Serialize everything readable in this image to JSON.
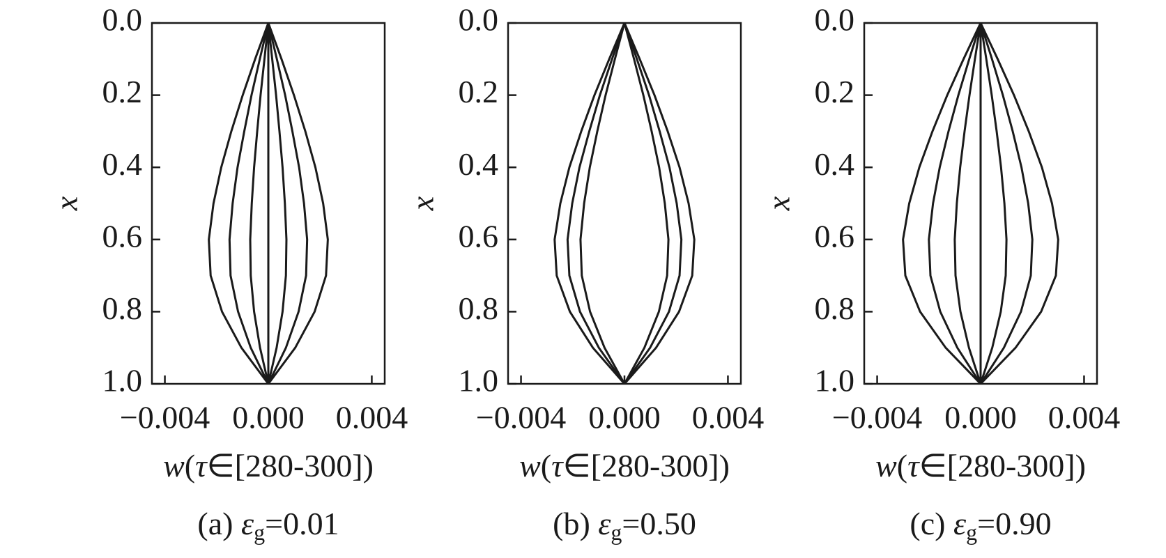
{
  "chart_data": [
    {
      "type": "line",
      "ylabel": "x",
      "xlabel": [
        "w",
        "(",
        "τ",
        "∈[280-300])"
      ],
      "caption": [
        "(a) ",
        "ε",
        "g",
        "=0.01"
      ],
      "xlim": [
        -0.0045,
        0.0045
      ],
      "ylim": [
        0,
        1
      ],
      "y_inverted": true,
      "color": "#1a1a1a",
      "xticks": [
        {
          "value": -0.004,
          "label": "−0.004"
        },
        {
          "value": 0,
          "label": "0.000"
        },
        {
          "value": 0.004,
          "label": "0.004"
        }
      ],
      "yticks": [
        {
          "value": 0,
          "label": "0.0"
        },
        {
          "value": 0.2,
          "label": "0.2"
        },
        {
          "value": 0.4,
          "label": "0.4"
        },
        {
          "value": 0.6,
          "label": "0.6"
        },
        {
          "value": 0.8,
          "label": "0.8"
        },
        {
          "value": 1,
          "label": "1.0"
        }
      ],
      "x": [
        0,
        0.1,
        0.2,
        0.3,
        0.4,
        0.5,
        0.6,
        0.7,
        0.8,
        0.9,
        1
      ],
      "series": [
        {
          "values": [
            0,
            0.00051,
            0.00099,
            0.00143,
            0.00182,
            0.00212,
            0.0023,
            0.00223,
            0.00179,
            0.00104,
            0
          ]
        },
        {
          "values": [
            0,
            0.00033,
            0.00065,
            0.00093,
            0.00119,
            0.00138,
            0.0015,
            0.00146,
            0.00117,
            0.00068,
            0
          ]
        },
        {
          "values": [
            0,
            0.00015,
            0.0003,
            0.00043,
            0.00055,
            0.00064,
            0.0007,
            0.00068,
            0.00055,
            0.00032,
            0
          ]
        },
        {
          "values": [
            0,
            0,
            0,
            0,
            0,
            0,
            0,
            0,
            0,
            0,
            0
          ]
        },
        {
          "values": [
            0,
            -0.00015,
            -0.0003,
            -0.00043,
            -0.00055,
            -0.00064,
            -0.0007,
            -0.00068,
            -0.00055,
            -0.00032,
            0
          ]
        },
        {
          "values": [
            0,
            -0.00033,
            -0.00065,
            -0.00093,
            -0.00119,
            -0.00138,
            -0.0015,
            -0.00146,
            -0.00117,
            -0.00068,
            0
          ]
        },
        {
          "values": [
            0,
            -0.00051,
            -0.00099,
            -0.00143,
            -0.00182,
            -0.00212,
            -0.0023,
            -0.00223,
            -0.00179,
            -0.00104,
            0
          ]
        }
      ]
    },
    {
      "type": "line",
      "ylabel": "x",
      "xlabel": [
        "w",
        "(",
        "τ",
        "∈[280-300])"
      ],
      "caption": [
        "(b) ",
        "ε",
        "g",
        "=0.50"
      ],
      "xlim": [
        -0.0045,
        0.0045
      ],
      "ylim": [
        0,
        1
      ],
      "y_inverted": true,
      "color": "#1a1a1a",
      "xticks": [
        {
          "value": -0.004,
          "label": "−0.004"
        },
        {
          "value": 0,
          "label": "0.000"
        },
        {
          "value": 0.004,
          "label": "0.004"
        }
      ],
      "yticks": [
        {
          "value": 0,
          "label": "0.0"
        },
        {
          "value": 0.2,
          "label": "0.2"
        },
        {
          "value": 0.4,
          "label": "0.4"
        },
        {
          "value": 0.6,
          "label": "0.6"
        },
        {
          "value": 0.8,
          "label": "0.8"
        },
        {
          "value": 1,
          "label": "1.0"
        }
      ],
      "x": [
        0,
        0.1,
        0.2,
        0.3,
        0.4,
        0.5,
        0.6,
        0.7,
        0.8,
        0.9,
        1
      ],
      "series": [
        {
          "values": [
            0,
            0.00059,
            0.00116,
            0.00167,
            0.00213,
            0.00248,
            0.0027,
            0.00262,
            0.00211,
            0.00122,
            0
          ]
        },
        {
          "values": [
            0,
            0.00048,
            0.00095,
            0.00136,
            0.00174,
            0.00202,
            0.0022,
            0.00213,
            0.00172,
            0.00099,
            0
          ]
        },
        {
          "values": [
            0,
            0.00037,
            0.00073,
            0.00105,
            0.00134,
            0.00156,
            0.0017,
            0.00165,
            0.00133,
            0.00077,
            0
          ]
        },
        {
          "values": [
            0,
            -0.00037,
            -0.00073,
            -0.00105,
            -0.00134,
            -0.00156,
            -0.0017,
            -0.00165,
            -0.00133,
            -0.00077,
            0
          ]
        },
        {
          "values": [
            0,
            -0.00048,
            -0.00095,
            -0.00136,
            -0.00174,
            -0.00202,
            -0.0022,
            -0.00213,
            -0.00172,
            -0.00099,
            0
          ]
        },
        {
          "values": [
            0,
            -0.00059,
            -0.00116,
            -0.00167,
            -0.00213,
            -0.00248,
            -0.0027,
            -0.00262,
            -0.00211,
            -0.00122,
            0
          ]
        }
      ]
    },
    {
      "type": "line",
      "ylabel": "x",
      "xlabel": [
        "w",
        "(",
        "τ",
        "∈[280-300])"
      ],
      "caption": [
        "(c) ",
        "ε",
        "g",
        "=0.90"
      ],
      "xlim": [
        -0.0045,
        0.0045
      ],
      "ylim": [
        0,
        1
      ],
      "y_inverted": true,
      "color": "#1a1a1a",
      "xticks": [
        {
          "value": -0.004,
          "label": "−0.004"
        },
        {
          "value": 0,
          "label": "0.000"
        },
        {
          "value": 0.004,
          "label": "0.004"
        }
      ],
      "yticks": [
        {
          "value": 0,
          "label": "0.0"
        },
        {
          "value": 0.2,
          "label": "0.2"
        },
        {
          "value": 0.4,
          "label": "0.4"
        },
        {
          "value": 0.6,
          "label": "0.6"
        },
        {
          "value": 0.8,
          "label": "0.8"
        },
        {
          "value": 1,
          "label": "1.0"
        }
      ],
      "x": [
        0,
        0.1,
        0.2,
        0.3,
        0.4,
        0.5,
        0.6,
        0.7,
        0.8,
        0.9,
        1
      ],
      "series": [
        {
          "values": [
            0,
            0.00066,
            0.00129,
            0.00186,
            0.00237,
            0.00276,
            0.003,
            0.00291,
            0.00234,
            0.00135,
            0
          ]
        },
        {
          "values": [
            0,
            0.00044,
            0.00086,
            0.00124,
            0.00158,
            0.00184,
            0.002,
            0.00194,
            0.00156,
            0.0009,
            0
          ]
        },
        {
          "values": [
            0,
            0.00022,
            0.00043,
            0.00062,
            0.00079,
            0.00092,
            0.001,
            0.00097,
            0.00078,
            0.00045,
            0
          ]
        },
        {
          "values": [
            0,
            0,
            0,
            0,
            0,
            0,
            0,
            0,
            0,
            0,
            0
          ]
        },
        {
          "values": [
            0,
            -0.00022,
            -0.00043,
            -0.00062,
            -0.00079,
            -0.00092,
            -0.001,
            -0.00097,
            -0.00078,
            -0.00045,
            0
          ]
        },
        {
          "values": [
            0,
            -0.00044,
            -0.00086,
            -0.00124,
            -0.00158,
            -0.00184,
            -0.002,
            -0.00194,
            -0.00156,
            -0.0009,
            0
          ]
        },
        {
          "values": [
            0,
            -0.00066,
            -0.00129,
            -0.00186,
            -0.00237,
            -0.00276,
            -0.003,
            -0.00291,
            -0.00234,
            -0.00135,
            0
          ]
        }
      ]
    }
  ]
}
